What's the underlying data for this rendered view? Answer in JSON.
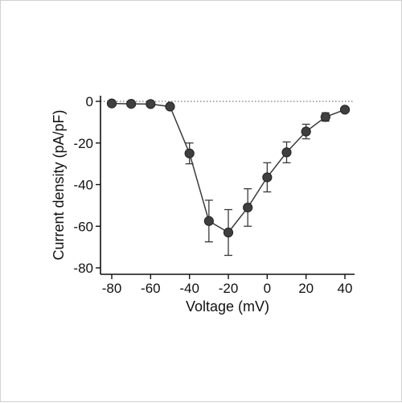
{
  "chart_data": {
    "type": "line",
    "title": "",
    "xlabel": "Voltage (mV)",
    "ylabel": "Current density (pA/pF)",
    "xlim": [
      -84,
      44
    ],
    "ylim": [
      -80,
      3
    ],
    "x_ticks": [
      -80,
      -60,
      -40,
      -20,
      0,
      20,
      40
    ],
    "x_tick_labels": [
      "-80",
      "-60",
      "-40",
      "-20",
      "0",
      "20",
      "40"
    ],
    "y_ticks": [
      0,
      -20,
      -40,
      -60,
      -80
    ],
    "y_tick_labels": [
      "0",
      "-20",
      "-40",
      "-60",
      "-80"
    ],
    "grid": false,
    "zero_reference_line": "dotted",
    "colors": {
      "series": "#3a3a3a",
      "marker": "#3f3f3f",
      "axis": "#111111"
    },
    "series": [
      {
        "x": [
          -80,
          -70,
          -60,
          -50,
          -40,
          -30,
          -20,
          -10,
          0,
          10,
          20,
          30,
          40
        ],
        "values": [
          -1,
          -1.2,
          -1.3,
          -2.5,
          -25,
          -57.5,
          -63,
          -51,
          -36.5,
          -24.5,
          -14.5,
          -7.5,
          -4
        ],
        "error": [
          0,
          0,
          0,
          0,
          5,
          10,
          11,
          9,
          7,
          5,
          3.5,
          2,
          0
        ]
      }
    ]
  }
}
